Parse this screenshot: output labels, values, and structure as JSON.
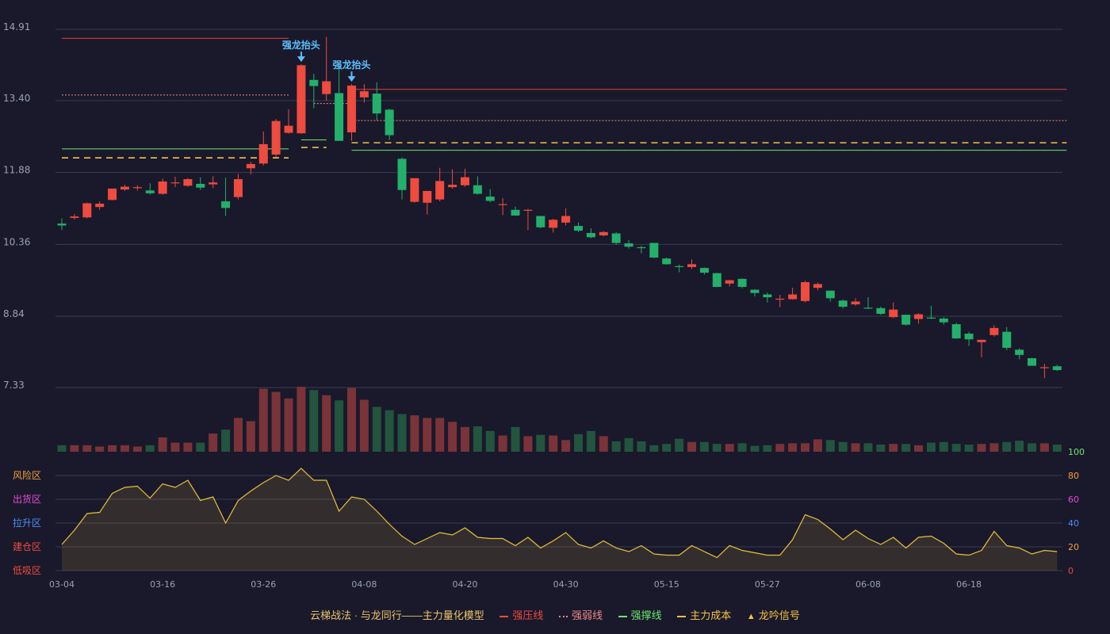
{
  "chart_data": {
    "type": "candlestick",
    "title": "",
    "price_axis": {
      "ticks": [
        "14.91",
        "13.40",
        "11.88",
        "10.36",
        "8.84",
        "7.33"
      ],
      "ylim": [
        7.33,
        14.91
      ]
    },
    "x_ticks": [
      {
        "i": 0,
        "label": "03-04"
      },
      {
        "i": 8,
        "label": "03-16"
      },
      {
        "i": 16,
        "label": "03-26"
      },
      {
        "i": 24,
        "label": "04-08"
      },
      {
        "i": 32,
        "label": "04-20"
      },
      {
        "i": 40,
        "label": "04-30"
      },
      {
        "i": 48,
        "label": "05-15"
      },
      {
        "i": 56,
        "label": "05-27"
      },
      {
        "i": 64,
        "label": "06-08"
      },
      {
        "i": 72,
        "label": "06-18"
      }
    ],
    "candles": [
      [
        10.8,
        10.76,
        10.91,
        10.67
      ],
      [
        10.92,
        10.95,
        11.0,
        10.88
      ],
      [
        10.93,
        11.23,
        11.24,
        10.91
      ],
      [
        11.15,
        11.22,
        11.27,
        11.09
      ],
      [
        11.3,
        11.54,
        11.54,
        11.29
      ],
      [
        11.52,
        11.58,
        11.62,
        11.49
      ],
      [
        11.55,
        11.57,
        11.61,
        11.5
      ],
      [
        11.5,
        11.44,
        11.65,
        11.41
      ],
      [
        11.43,
        11.69,
        11.75,
        11.41
      ],
      [
        11.65,
        11.67,
        11.79,
        11.57
      ],
      [
        11.6,
        11.74,
        11.76,
        11.58
      ],
      [
        11.64,
        11.56,
        11.78,
        11.51
      ],
      [
        11.63,
        11.67,
        11.8,
        11.55
      ],
      [
        11.27,
        11.13,
        11.77,
        10.96
      ],
      [
        11.36,
        11.74,
        11.85,
        11.31
      ],
      [
        11.97,
        12.06,
        12.11,
        11.84
      ],
      [
        12.07,
        12.48,
        12.75,
        12.03
      ],
      [
        12.26,
        12.97,
        13.01,
        12.2
      ],
      [
        12.72,
        12.87,
        13.22,
        12.7
      ],
      [
        12.71,
        14.15,
        14.17,
        12.7
      ],
      [
        13.84,
        13.71,
        13.97,
        13.24
      ],
      [
        13.54,
        13.81,
        14.75,
        13.4
      ],
      [
        13.56,
        12.55,
        14.16,
        12.55
      ],
      [
        12.73,
        13.72,
        13.75,
        12.55
      ],
      [
        13.47,
        13.6,
        13.75,
        13.36
      ],
      [
        13.55,
        13.13,
        13.79,
        12.98
      ],
      [
        13.21,
        12.67,
        13.23,
        12.57
      ],
      [
        12.17,
        11.51,
        12.2,
        11.31
      ],
      [
        11.26,
        11.76,
        11.76,
        11.24
      ],
      [
        11.24,
        11.49,
        11.49,
        10.99
      ],
      [
        11.31,
        11.7,
        11.98,
        11.27
      ],
      [
        11.57,
        11.62,
        11.95,
        11.54
      ],
      [
        11.61,
        11.78,
        11.96,
        11.58
      ],
      [
        11.61,
        11.43,
        11.8,
        11.41
      ],
      [
        11.37,
        11.28,
        11.53,
        11.25
      ],
      [
        11.19,
        11.21,
        11.34,
        10.98
      ],
      [
        11.09,
        10.97,
        11.16,
        10.96
      ],
      [
        11.09,
        11.09,
        11.11,
        10.66
      ],
      [
        10.96,
        10.72,
        10.96,
        10.7
      ],
      [
        10.71,
        10.88,
        10.9,
        10.61
      ],
      [
        10.82,
        10.96,
        11.12,
        10.76
      ],
      [
        10.75,
        10.65,
        10.82,
        10.62
      ],
      [
        10.6,
        10.51,
        10.7,
        10.49
      ],
      [
        10.55,
        10.62,
        10.64,
        10.53
      ],
      [
        10.59,
        10.39,
        10.62,
        10.35
      ],
      [
        10.38,
        10.31,
        10.45,
        10.27
      ],
      [
        10.3,
        10.28,
        10.33,
        10.17
      ],
      [
        10.39,
        10.08,
        10.39,
        10.07
      ],
      [
        10.06,
        9.94,
        10.08,
        9.93
      ],
      [
        9.9,
        9.88,
        9.93,
        9.77
      ],
      [
        9.88,
        9.94,
        10.04,
        9.84
      ],
      [
        9.86,
        9.76,
        9.87,
        9.72
      ],
      [
        9.75,
        9.46,
        9.76,
        9.45
      ],
      [
        9.53,
        9.6,
        9.61,
        9.47
      ],
      [
        9.63,
        9.46,
        9.64,
        9.43
      ],
      [
        9.4,
        9.33,
        9.41,
        9.26
      ],
      [
        9.3,
        9.24,
        9.34,
        9.13
      ],
      [
        9.19,
        9.21,
        9.29,
        9.03
      ],
      [
        9.2,
        9.3,
        9.44,
        9.19
      ],
      [
        9.16,
        9.56,
        9.59,
        9.13
      ],
      [
        9.44,
        9.52,
        9.55,
        9.39
      ],
      [
        9.38,
        9.22,
        9.38,
        9.15
      ],
      [
        9.17,
        9.04,
        9.19,
        9.0
      ],
      [
        9.09,
        9.15,
        9.22,
        9.06
      ],
      [
        9.02,
        9.01,
        9.24,
        8.99
      ],
      [
        9.01,
        8.89,
        9.04,
        8.87
      ],
      [
        8.82,
        8.98,
        9.13,
        8.8
      ],
      [
        8.87,
        8.66,
        8.87,
        8.64
      ],
      [
        8.78,
        8.88,
        8.9,
        8.68
      ],
      [
        8.81,
        8.79,
        9.06,
        8.78
      ],
      [
        8.79,
        8.71,
        8.82,
        8.66
      ],
      [
        8.67,
        8.37,
        8.7,
        8.36
      ],
      [
        8.47,
        8.35,
        8.51,
        8.21
      ],
      [
        8.29,
        8.34,
        8.34,
        7.97
      ],
      [
        8.44,
        8.59,
        8.65,
        8.41
      ],
      [
        8.51,
        8.17,
        8.61,
        8.12
      ],
      [
        8.13,
        8.02,
        8.16,
        7.93
      ],
      [
        7.95,
        7.79,
        7.96,
        7.79
      ],
      [
        7.75,
        7.76,
        7.83,
        7.53
      ],
      [
        7.78,
        7.7,
        7.81,
        7.68
      ]
    ],
    "volume": [
      0.1,
      0.1,
      0.1,
      0.08,
      0.1,
      0.1,
      0.08,
      0.1,
      0.22,
      0.14,
      0.14,
      0.14,
      0.28,
      0.34,
      0.52,
      0.47,
      0.97,
      0.92,
      0.82,
      1.0,
      0.95,
      0.87,
      0.79,
      0.98,
      0.8,
      0.69,
      0.64,
      0.58,
      0.56,
      0.52,
      0.52,
      0.46,
      0.38,
      0.39,
      0.32,
      0.25,
      0.38,
      0.24,
      0.26,
      0.25,
      0.18,
      0.27,
      0.32,
      0.24,
      0.16,
      0.21,
      0.16,
      0.1,
      0.12,
      0.2,
      0.15,
      0.15,
      0.12,
      0.12,
      0.13,
      0.09,
      0.1,
      0.12,
      0.13,
      0.13,
      0.19,
      0.18,
      0.15,
      0.13,
      0.13,
      0.11,
      0.12,
      0.12,
      0.1,
      0.14,
      0.15,
      0.12,
      0.11,
      0.12,
      0.13,
      0.15,
      0.17,
      0.13,
      0.13,
      0.11
    ],
    "indicator": {
      "axis_ticks": [
        "0",
        "20",
        "40",
        "60",
        "80",
        "100"
      ],
      "ylim": [
        0,
        100
      ],
      "zones": [
        "风险区",
        "出货区",
        "拉升区",
        "建仓区",
        "低吸区"
      ],
      "values": [
        22,
        34,
        48,
        49,
        65,
        70,
        71,
        61,
        73,
        70,
        76,
        59,
        62,
        40,
        59,
        67,
        74,
        80,
        76,
        86,
        76,
        76,
        50,
        62,
        60,
        50,
        39,
        29,
        22,
        27,
        32,
        30,
        36,
        28,
        27,
        27,
        21,
        28,
        19,
        25,
        32,
        22,
        19,
        25,
        19,
        16,
        21,
        14,
        13,
        13,
        21,
        16,
        11,
        21,
        17,
        15,
        13,
        13,
        26,
        47,
        43,
        35,
        26,
        34,
        27,
        22,
        28,
        19,
        28,
        29,
        23,
        14,
        13,
        17,
        33,
        21,
        19,
        14,
        17,
        16
      ]
    },
    "levels": [
      {
        "type": "strong_pressure",
        "value": 14.72,
        "from": 0,
        "to": 18
      },
      {
        "type": "strong_pressure",
        "value": 13.64,
        "from": 23,
        "to": 79
      },
      {
        "type": "weak_line",
        "value": 13.52,
        "from": 0,
        "to": 18
      },
      {
        "type": "weak_line",
        "value": 13.34,
        "from": 20,
        "to": 23
      },
      {
        "type": "weak_line",
        "value": 12.98,
        "from": 23,
        "to": 79
      },
      {
        "type": "support",
        "value": 12.38,
        "from": 0,
        "to": 18
      },
      {
        "type": "support",
        "value": 12.57,
        "from": 19,
        "to": 21
      },
      {
        "type": "support",
        "value": 12.35,
        "from": 23,
        "to": 79
      },
      {
        "type": "main_cost",
        "value": 12.19,
        "from": 0,
        "to": 18
      },
      {
        "type": "main_cost",
        "value": 12.41,
        "from": 19,
        "to": 21
      },
      {
        "type": "main_cost",
        "value": 12.51,
        "from": 23,
        "to": 79
      }
    ],
    "signals": [
      {
        "i": 19,
        "label": "强龙抬头"
      },
      {
        "i": 23,
        "label": "强龙抬头"
      }
    ],
    "colors": {
      "up": "#ef4b3f",
      "down": "#24b06b",
      "pressure": "#e0413c",
      "weak": "#f08b8b",
      "support": "#6ee86e",
      "cost": "#f6c243",
      "signal": "#5cc0ff",
      "indicator": "#e8c13a"
    }
  },
  "legend": {
    "title": "云梯战法 · 与龙同行——主力量化模型",
    "items": [
      {
        "label": "强压线",
        "style": "solid",
        "color": "#ef4b3f"
      },
      {
        "label": "强弱线",
        "style": "dotted",
        "color": "#f08b8b"
      },
      {
        "label": "强撑线",
        "style": "solid",
        "color": "#6ee86e"
      },
      {
        "label": "主力成本",
        "style": "dashed",
        "color": "#f6c243"
      }
    ],
    "signal_label": "龙吟信号"
  }
}
